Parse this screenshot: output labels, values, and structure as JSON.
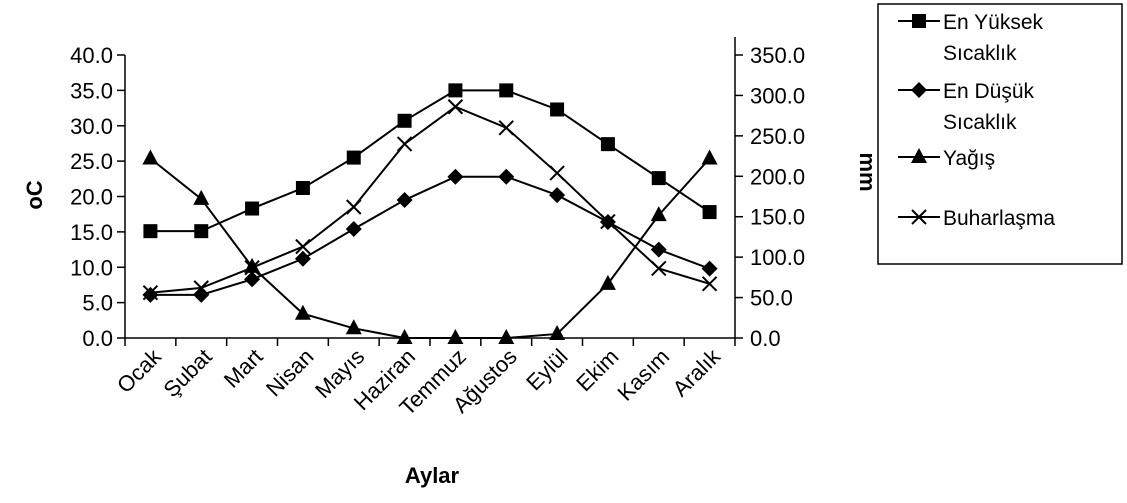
{
  "chart_data": {
    "type": "line",
    "xlabel": "Aylar",
    "ylabel": "oC",
    "y2label": "mm",
    "categories": [
      "Ocak",
      "Şubat",
      "Mart",
      "Nisan",
      "Mayıs",
      "Haziran",
      "Temmuz",
      "Ağustos",
      "Eylül",
      "Ekim",
      "Kasım",
      "Aralık"
    ],
    "ylim": [
      0,
      40
    ],
    "y2lim": [
      0,
      350
    ],
    "yticks": [
      "0.0",
      "5.0",
      "10.0",
      "15.0",
      "20.0",
      "25.0",
      "30.0",
      "35.0",
      "40.0"
    ],
    "y2ticks": [
      "0.0",
      "50.0",
      "100.0",
      "150.0",
      "200.0",
      "250.0",
      "300.0",
      "350.0"
    ],
    "grid": false,
    "legend_position": "top-right",
    "series": [
      {
        "name": "En Yüksek Sıcaklık",
        "legend_lines": [
          "En Yüksek",
          "Sıcaklık"
        ],
        "axis": "left",
        "marker": "square",
        "values": [
          15.1,
          15.1,
          18.3,
          21.2,
          25.5,
          30.7,
          35.0,
          35.0,
          32.3,
          27.4,
          22.6,
          17.8
        ]
      },
      {
        "name": "En Düşük Sıcaklık",
        "legend_lines": [
          "En Düşük",
          "Sıcaklık"
        ],
        "axis": "left",
        "marker": "diamond",
        "values": [
          6.1,
          6.1,
          8.3,
          11.2,
          15.4,
          19.5,
          22.8,
          22.8,
          20.2,
          16.4,
          12.5,
          9.8
        ]
      },
      {
        "name": "Yağış",
        "legend_lines": [
          "Yağış"
        ],
        "axis": "right",
        "marker": "triangle",
        "values": [
          222,
          172,
          88,
          30,
          12,
          0,
          0,
          0,
          5,
          67,
          152,
          222
        ]
      },
      {
        "name": "Buharlaşma",
        "legend_lines": [
          "Buharlaşma"
        ],
        "axis": "right",
        "marker": "x",
        "values": [
          56,
          62,
          87,
          113,
          162,
          240,
          286,
          260,
          204,
          144,
          86,
          67
        ]
      }
    ]
  }
}
